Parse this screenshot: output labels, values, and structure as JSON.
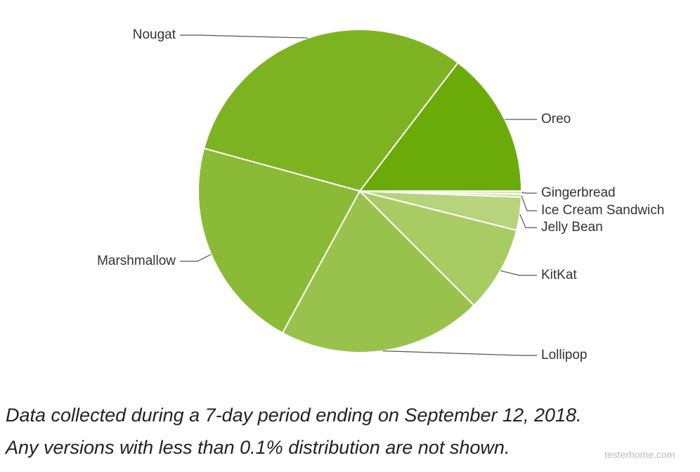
{
  "chart_data": {
    "type": "pie",
    "categories": [
      "Oreo",
      "Nougat",
      "Marshmallow",
      "Lollipop",
      "KitKat",
      "Jelly Bean",
      "Ice Cream Sandwich",
      "Gingerbread"
    ],
    "values": [
      14.6,
      31.1,
      21.3,
      20.4,
      8.6,
      3.3,
      0.3,
      0.3
    ],
    "colors": [
      "#6aab0a",
      "#7db321",
      "#8bba36",
      "#99c24c",
      "#a8cb63",
      "#b7d47c",
      "#c6de96",
      "#d4e7b0"
    ],
    "footnote": [
      "Data collected during a 7-day period ending on September 12, 2018.",
      "Any versions with less than 0.1% distribution are not shown."
    ],
    "watermark": "testerhome.com"
  }
}
